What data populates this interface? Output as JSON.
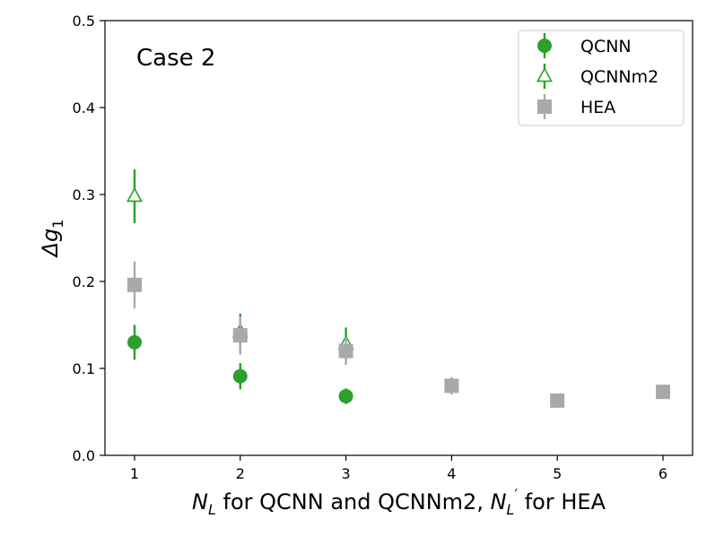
{
  "chart_data": {
    "type": "scatter",
    "annotation": "Case 2",
    "xlabel": {
      "var": "N",
      "sub": "L",
      "mid": " for QCNN and QCNNm2, ",
      "var2": "N",
      "sub2": "L",
      "prime": "′",
      "tail": " for HEA"
    },
    "ylabel": {
      "pre": "Δ",
      "var": "g",
      "sub": "1"
    },
    "xlim": [
      0.72,
      6.28
    ],
    "ylim": [
      0.0,
      0.5
    ],
    "xticks": [
      1,
      2,
      3,
      4,
      5,
      6
    ],
    "yticks": [
      0.0,
      0.1,
      0.2,
      0.3,
      0.4,
      0.5
    ],
    "ytick_labels": [
      "0.0",
      "0.1",
      "0.2",
      "0.3",
      "0.4",
      "0.5"
    ],
    "grid": false,
    "legend_position": "top-right",
    "series": [
      {
        "name": "QCNN",
        "marker": "circle",
        "color": "#2ca02c",
        "filled": true,
        "x": [
          1,
          2,
          3
        ],
        "y": [
          0.13,
          0.091,
          0.068
        ],
        "err": [
          0.02,
          0.015,
          0.009
        ]
      },
      {
        "name": "QCNNm2",
        "marker": "triangle",
        "color": "#2ca02c",
        "filled": false,
        "x": [
          1,
          2,
          3
        ],
        "y": [
          0.298,
          0.142,
          0.128
        ],
        "err": [
          0.031,
          0.021,
          0.019
        ]
      },
      {
        "name": "HEA",
        "marker": "square",
        "color": "#a9a9a9",
        "filled": true,
        "x": [
          1,
          2,
          3,
          4,
          5,
          6
        ],
        "y": [
          0.196,
          0.138,
          0.12,
          0.08,
          0.063,
          0.073
        ],
        "err": [
          0.027,
          0.022,
          0.016,
          0.01,
          0.005,
          0.005
        ]
      }
    ]
  }
}
